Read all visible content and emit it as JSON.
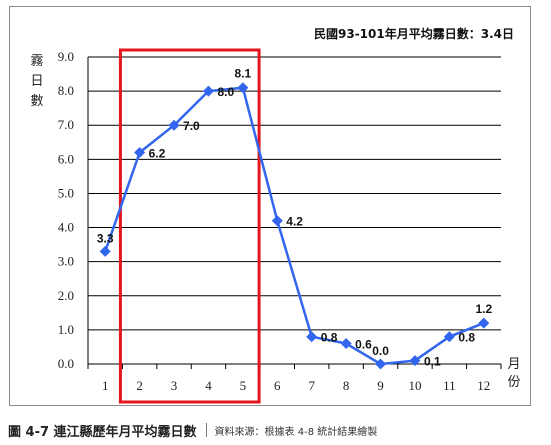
{
  "chart_data": {
    "type": "line",
    "categories": [
      "1",
      "2",
      "3",
      "4",
      "5",
      "6",
      "7",
      "8",
      "9",
      "10",
      "11",
      "12"
    ],
    "values": [
      3.3,
      6.2,
      7.0,
      8.0,
      8.1,
      4.2,
      0.8,
      0.6,
      0.0,
      0.1,
      0.8,
      1.2
    ],
    "data_labels": [
      "3.3",
      "6.2",
      "7.0",
      "8.0",
      "8.1",
      "4.2",
      "0.8",
      "0.6",
      "0.0",
      "0.1",
      "0.8",
      "1.2"
    ],
    "y_ticks": [
      "0.0",
      "1.0",
      "2.0",
      "3.0",
      "4.0",
      "5.0",
      "6.0",
      "7.0",
      "8.0",
      "9.0"
    ],
    "ylim": [
      0,
      9
    ],
    "ylabel": [
      "霧",
      "日",
      "數"
    ],
    "xlabel": [
      "月",
      "份"
    ],
    "annotation": "民國93-101年月平均霧日數：3.4日",
    "highlight_months": [
      "2",
      "3",
      "4",
      "5"
    ],
    "grid": "horizontal",
    "colors": {
      "series": "#3366ee",
      "highlight": "#e3161e",
      "grid": "#000000"
    }
  },
  "caption": {
    "title": "圖 4-7  連江縣歷年月平均霧日數",
    "source": "資料來源：根據表 4-8 統計結果繪製"
  }
}
